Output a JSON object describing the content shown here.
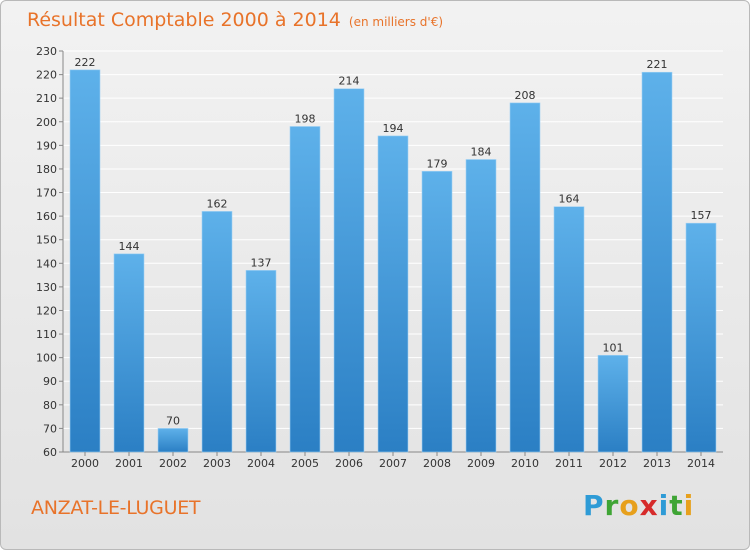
{
  "header": {
    "title": "Résultat Comptable 2000 à 2014",
    "unit": "(en milliers d'€)"
  },
  "footer": {
    "commune": "ANZAT-LE-LUGUET",
    "brand": {
      "letters": [
        "P",
        "r",
        "o",
        "x",
        "i",
        "t",
        "i"
      ],
      "colors": [
        "#2e9bd6",
        "#3fa535",
        "#e7a01c",
        "#d62b2b",
        "#2e9bd6",
        "#3fa535",
        "#e7a01c"
      ]
    }
  },
  "colors": {
    "title": "#e8732a",
    "bar_top": "#5eb1ea",
    "bar_bottom": "#2b7fc4",
    "grid": "#ffffff",
    "axis": "#888888"
  },
  "chart_data": {
    "type": "bar",
    "categories": [
      "2000",
      "2001",
      "2002",
      "2003",
      "2004",
      "2005",
      "2006",
      "2007",
      "2008",
      "2009",
      "2010",
      "2011",
      "2012",
      "2013",
      "2014"
    ],
    "values": [
      222,
      144,
      70,
      162,
      137,
      198,
      214,
      194,
      179,
      184,
      208,
      164,
      101,
      221,
      157
    ],
    "ylim": [
      60,
      230
    ],
    "ytick_step": 10,
    "grid": true,
    "data_labels": true
  }
}
